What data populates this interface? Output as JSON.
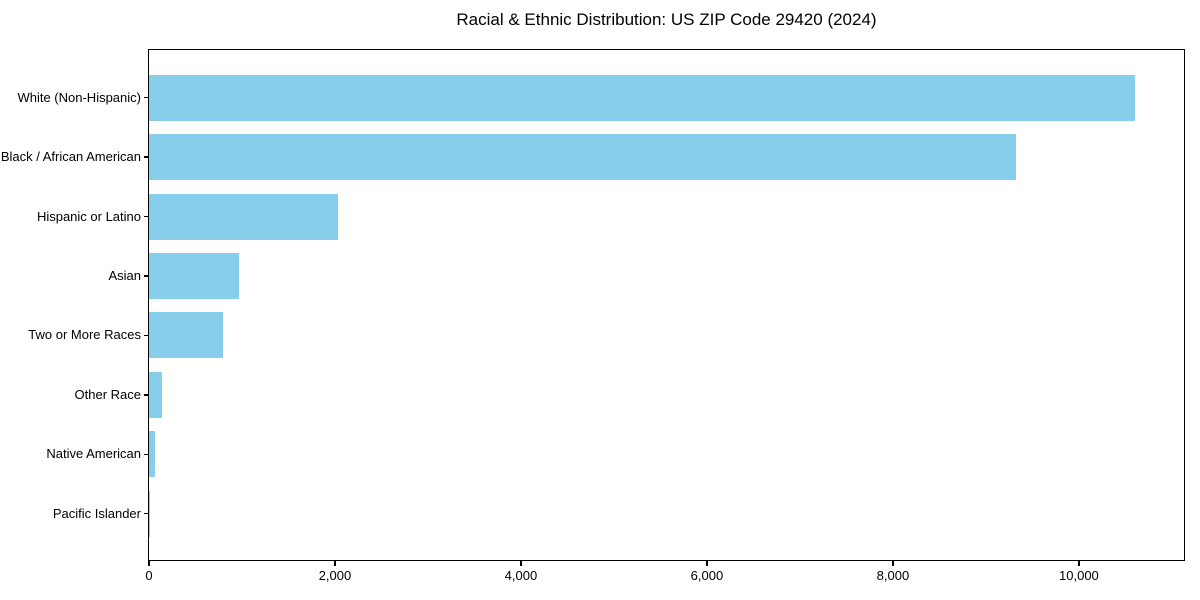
{
  "chart_data": {
    "type": "bar",
    "orientation": "horizontal",
    "title": "Racial & Ethnic Distribution: US ZIP Code 29420 (2024)",
    "categories": [
      "White (Non-Hispanic)",
      "Black / African American",
      "Hispanic or Latino",
      "Asian",
      "Two or More Races",
      "Other Race",
      "Native American",
      "Pacific Islander"
    ],
    "values": [
      10600,
      9320,
      2030,
      970,
      790,
      140,
      60,
      10
    ],
    "xlabel": "",
    "ylabel": "",
    "xlim": [
      0,
      11130
    ],
    "x_ticks": [
      0,
      2000,
      4000,
      6000,
      8000,
      10000
    ],
    "x_tick_labels": [
      "0",
      "2,000",
      "4,000",
      "6,000",
      "8,000",
      "10,000"
    ],
    "grid": false,
    "legend": "none",
    "bar_color": "#87CEEB",
    "axis_color": "#000000",
    "background_color": "#FFFFFF",
    "text_color": "#000000"
  }
}
